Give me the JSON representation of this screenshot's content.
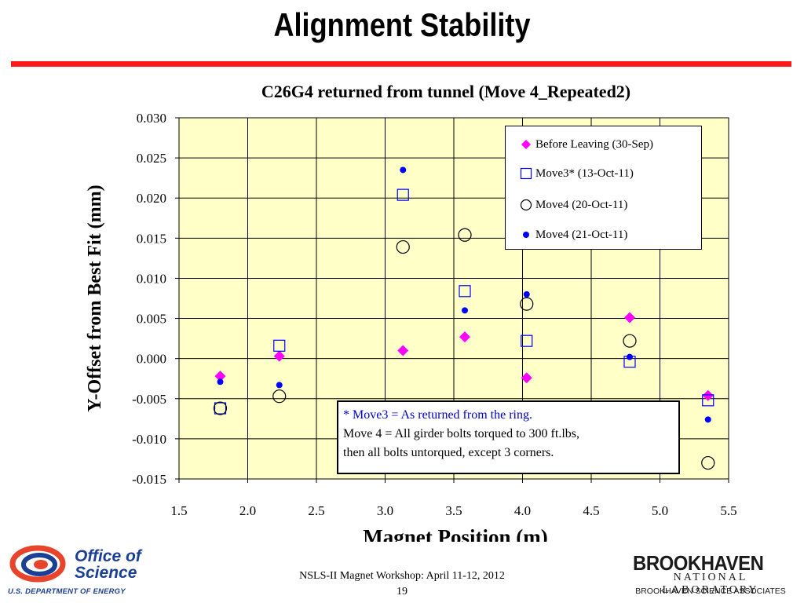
{
  "slide": {
    "title": "Alignment Stability",
    "colors": {
      "title_rule": "#ff1a1a",
      "plot_bg": "#ffffc8"
    }
  },
  "chart_data": {
    "type": "scatter",
    "title": "C26G4 returned from tunnel (Move 4_Repeated2)",
    "xlabel": "Magnet Position (m)",
    "ylabel": "Y-Offset from Best Fit (mm)",
    "xlim": [
      1.5,
      5.5
    ],
    "ylim": [
      -0.015,
      0.03
    ],
    "xticks": [
      "1.5",
      "2.0",
      "2.5",
      "3.0",
      "3.5",
      "4.0",
      "4.5",
      "5.0",
      "5.5"
    ],
    "yticks": [
      "0.030",
      "0.025",
      "0.020",
      "0.015",
      "0.010",
      "0.005",
      "0.000",
      "-0.005",
      "-0.010",
      "-0.015"
    ],
    "grid": true,
    "legend_position": "top-right",
    "series": [
      {
        "name": "Before Leaving (30-Sep)",
        "marker": "diamond",
        "color": "#ff00ff",
        "x": [
          1.8,
          2.23,
          3.13,
          3.58,
          4.03,
          4.78,
          5.35
        ],
        "y": [
          -0.0022,
          0.0003,
          0.001,
          0.0027,
          -0.0024,
          0.0051,
          -0.0046
        ]
      },
      {
        "name": "Move3* (13-Oct-11)",
        "marker": "open-square",
        "color": "#0000ff",
        "x": [
          1.8,
          2.23,
          3.13,
          3.58,
          4.03,
          4.78,
          5.35
        ],
        "y": [
          -0.0062,
          0.0016,
          0.0204,
          0.0084,
          0.0022,
          -0.0004,
          -0.0052
        ]
      },
      {
        "name": "Move4 (20-Oct-11)",
        "marker": "open-circle",
        "color": "#000000",
        "x": [
          1.8,
          2.23,
          3.13,
          3.58,
          4.03,
          4.78,
          5.35
        ],
        "y": [
          -0.0062,
          -0.0047,
          0.0139,
          0.0154,
          0.0068,
          0.0022,
          -0.013
        ]
      },
      {
        "name": "Move4 (21-Oct-11)",
        "marker": "dot",
        "color": "#0000ff",
        "x": [
          1.8,
          2.23,
          3.13,
          3.58,
          4.03,
          4.78,
          5.35
        ],
        "y": [
          -0.0029,
          -0.0033,
          0.0235,
          0.006,
          0.008,
          0.0002,
          -0.0076
        ]
      }
    ],
    "annotation": [
      "* Move3 = As returned from the ring.",
      "Move 4 = All girder bolts torqued to 300 ft.lbs,",
      "then all bolts untorqued, except 3 corners."
    ]
  },
  "footer": {
    "workshop": "NSLS-II Magnet Workshop: April 11-12, 2012",
    "page": "19"
  },
  "logos": {
    "doe_line1": "Office of",
    "doe_line2": "Science",
    "doe_sub": "U.S. DEPARTMENT OF ENERGY",
    "bnl_name": "BROOKHAVEN",
    "bnl_lab": "NATIONAL LABORATORY",
    "bnl_assoc": "BROOKHAVEN SCIENCE ASSOCIATES"
  }
}
